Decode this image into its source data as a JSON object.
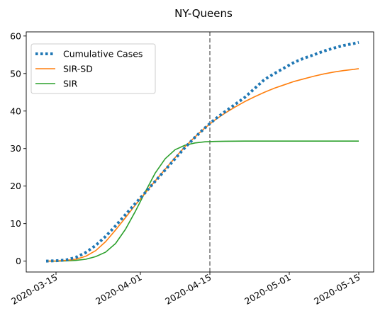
{
  "chart_data": {
    "type": "line",
    "title": "NY-Queens",
    "xlabel": "",
    "ylabel": "",
    "x_type": "date",
    "xlim": [
      "2020-03-09",
      "2020-05-18"
    ],
    "ylim": [
      -2.9,
      61.1
    ],
    "x_ticks": [
      "2020-03-15",
      "2020-04-01",
      "2020-04-15",
      "2020-05-01",
      "2020-05-15"
    ],
    "y_ticks": [
      0,
      10,
      20,
      30,
      40,
      50,
      60
    ],
    "grid": false,
    "legend_position": "upper left",
    "vline": {
      "x": "2020-04-15",
      "style": "dashed",
      "color": "#7f7f7f"
    },
    "series": [
      {
        "name": "Cumulative Cases",
        "color": "#1f77b4",
        "style": "dotted",
        "points": [
          [
            "2020-03-13",
            0.0
          ],
          [
            "2020-03-15",
            0.1
          ],
          [
            "2020-03-17",
            0.3
          ],
          [
            "2020-03-19",
            1.0
          ],
          [
            "2020-03-21",
            2.3
          ],
          [
            "2020-03-23",
            4.2
          ],
          [
            "2020-03-25",
            6.6
          ],
          [
            "2020-03-27",
            9.4
          ],
          [
            "2020-03-29",
            12.4
          ],
          [
            "2020-03-31",
            15.4
          ],
          [
            "2020-04-02",
            18.3
          ],
          [
            "2020-04-04",
            21.3
          ],
          [
            "2020-04-06",
            24.3
          ],
          [
            "2020-04-08",
            27.3
          ],
          [
            "2020-04-10",
            30.3
          ],
          [
            "2020-04-12",
            33.0
          ],
          [
            "2020-04-14",
            35.5
          ],
          [
            "2020-04-16",
            37.8
          ],
          [
            "2020-04-18",
            39.8
          ],
          [
            "2020-04-20",
            41.7
          ],
          [
            "2020-04-22",
            43.6
          ],
          [
            "2020-04-24",
            46.0
          ],
          [
            "2020-04-26",
            48.4
          ],
          [
            "2020-04-28",
            50.0
          ],
          [
            "2020-04-30",
            51.5
          ],
          [
            "2020-05-02",
            53.0
          ],
          [
            "2020-05-04",
            54.1
          ],
          [
            "2020-05-06",
            55.0
          ],
          [
            "2020-05-08",
            56.0
          ],
          [
            "2020-05-10",
            56.8
          ],
          [
            "2020-05-12",
            57.5
          ],
          [
            "2020-05-14",
            58.0
          ],
          [
            "2020-05-15",
            58.3
          ]
        ]
      },
      {
        "name": "SIR-SD",
        "color": "#ff7f0e",
        "style": "solid",
        "points": [
          [
            "2020-03-13",
            0.0
          ],
          [
            "2020-03-15",
            0.05
          ],
          [
            "2020-03-17",
            0.2
          ],
          [
            "2020-03-19",
            0.5
          ],
          [
            "2020-03-21",
            1.3
          ],
          [
            "2020-03-23",
            2.8
          ],
          [
            "2020-03-25",
            5.2
          ],
          [
            "2020-03-27",
            8.3
          ],
          [
            "2020-03-29",
            11.6
          ],
          [
            "2020-03-31",
            15.0
          ],
          [
            "2020-04-02",
            18.2
          ],
          [
            "2020-04-04",
            21.4
          ],
          [
            "2020-04-06",
            24.5
          ],
          [
            "2020-04-08",
            27.6
          ],
          [
            "2020-04-10",
            30.5
          ],
          [
            "2020-04-12",
            33.1
          ],
          [
            "2020-04-14",
            35.5
          ],
          [
            "2020-04-16",
            37.6
          ],
          [
            "2020-04-18",
            39.4
          ],
          [
            "2020-04-20",
            41.0
          ],
          [
            "2020-04-22",
            42.5
          ],
          [
            "2020-04-24",
            43.8
          ],
          [
            "2020-04-26",
            45.0
          ],
          [
            "2020-04-28",
            46.1
          ],
          [
            "2020-04-30",
            47.0
          ],
          [
            "2020-05-02",
            47.9
          ],
          [
            "2020-05-04",
            48.6
          ],
          [
            "2020-05-06",
            49.3
          ],
          [
            "2020-05-08",
            49.9
          ],
          [
            "2020-05-10",
            50.4
          ],
          [
            "2020-05-12",
            50.8
          ],
          [
            "2020-05-14",
            51.1
          ],
          [
            "2020-05-15",
            51.3
          ]
        ]
      },
      {
        "name": "SIR",
        "color": "#2ca02c",
        "style": "solid",
        "points": [
          [
            "2020-03-13",
            0.0
          ],
          [
            "2020-03-15",
            0.0
          ],
          [
            "2020-03-17",
            0.05
          ],
          [
            "2020-03-19",
            0.2
          ],
          [
            "2020-03-21",
            0.5
          ],
          [
            "2020-03-23",
            1.2
          ],
          [
            "2020-03-25",
            2.4
          ],
          [
            "2020-03-27",
            4.7
          ],
          [
            "2020-03-29",
            8.5
          ],
          [
            "2020-03-31",
            13.3
          ],
          [
            "2020-04-02",
            18.5
          ],
          [
            "2020-04-04",
            23.5
          ],
          [
            "2020-04-06",
            27.3
          ],
          [
            "2020-04-08",
            29.7
          ],
          [
            "2020-04-10",
            30.9
          ],
          [
            "2020-04-12",
            31.5
          ],
          [
            "2020-04-14",
            31.8
          ],
          [
            "2020-04-16",
            31.9
          ],
          [
            "2020-04-18",
            31.95
          ],
          [
            "2020-04-22",
            32.0
          ],
          [
            "2020-05-15",
            32.0
          ]
        ]
      }
    ]
  }
}
